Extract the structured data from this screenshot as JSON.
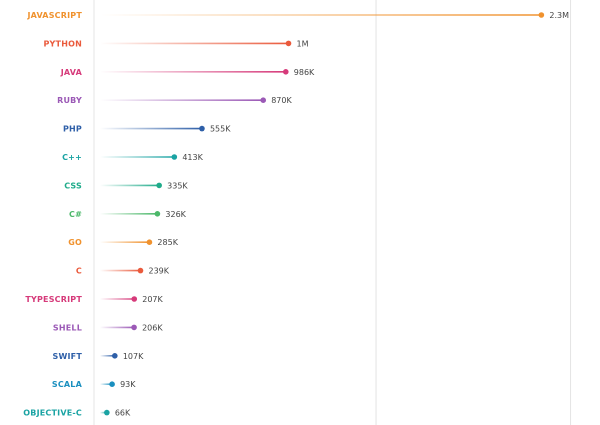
{
  "chart_data": {
    "type": "lollipop",
    "x_max": 2.55,
    "grid_lines": [
      1.45,
      2.45
    ],
    "unit": "millions",
    "items": [
      {
        "label": "JAVASCRIPT",
        "value": 2.3,
        "display": "2.3M",
        "color": "#f0922e"
      },
      {
        "label": "PYTHON",
        "value": 1.0,
        "display": "1M",
        "color": "#ea5a3c"
      },
      {
        "label": "JAVA",
        "value": 0.986,
        "display": "986K",
        "color": "#d63a7a"
      },
      {
        "label": "RUBY",
        "value": 0.87,
        "display": "870K",
        "color": "#9b59b6"
      },
      {
        "label": "PHP",
        "value": 0.555,
        "display": "555K",
        "color": "#2e5fa8"
      },
      {
        "label": "C++",
        "value": 0.413,
        "display": "413K",
        "color": "#1aa3a3"
      },
      {
        "label": "CSS",
        "value": 0.335,
        "display": "335K",
        "color": "#1fab8a"
      },
      {
        "label": "C#",
        "value": 0.326,
        "display": "326K",
        "color": "#4cb86a"
      },
      {
        "label": "GO",
        "value": 0.285,
        "display": "285K",
        "color": "#f0922e"
      },
      {
        "label": "C",
        "value": 0.239,
        "display": "239K",
        "color": "#ea5a3c"
      },
      {
        "label": "TYPESCRIPT",
        "value": 0.207,
        "display": "207K",
        "color": "#d63a7a"
      },
      {
        "label": "SHELL",
        "value": 0.206,
        "display": "206K",
        "color": "#9b59b6"
      },
      {
        "label": "SWIFT",
        "value": 0.107,
        "display": "107K",
        "color": "#2e5fa8"
      },
      {
        "label": "SCALA",
        "value": 0.093,
        "display": "93K",
        "color": "#1a8fbf"
      },
      {
        "label": "OBJECTIVE-C",
        "value": 0.066,
        "display": "66K",
        "color": "#1aa3a3"
      }
    ]
  }
}
